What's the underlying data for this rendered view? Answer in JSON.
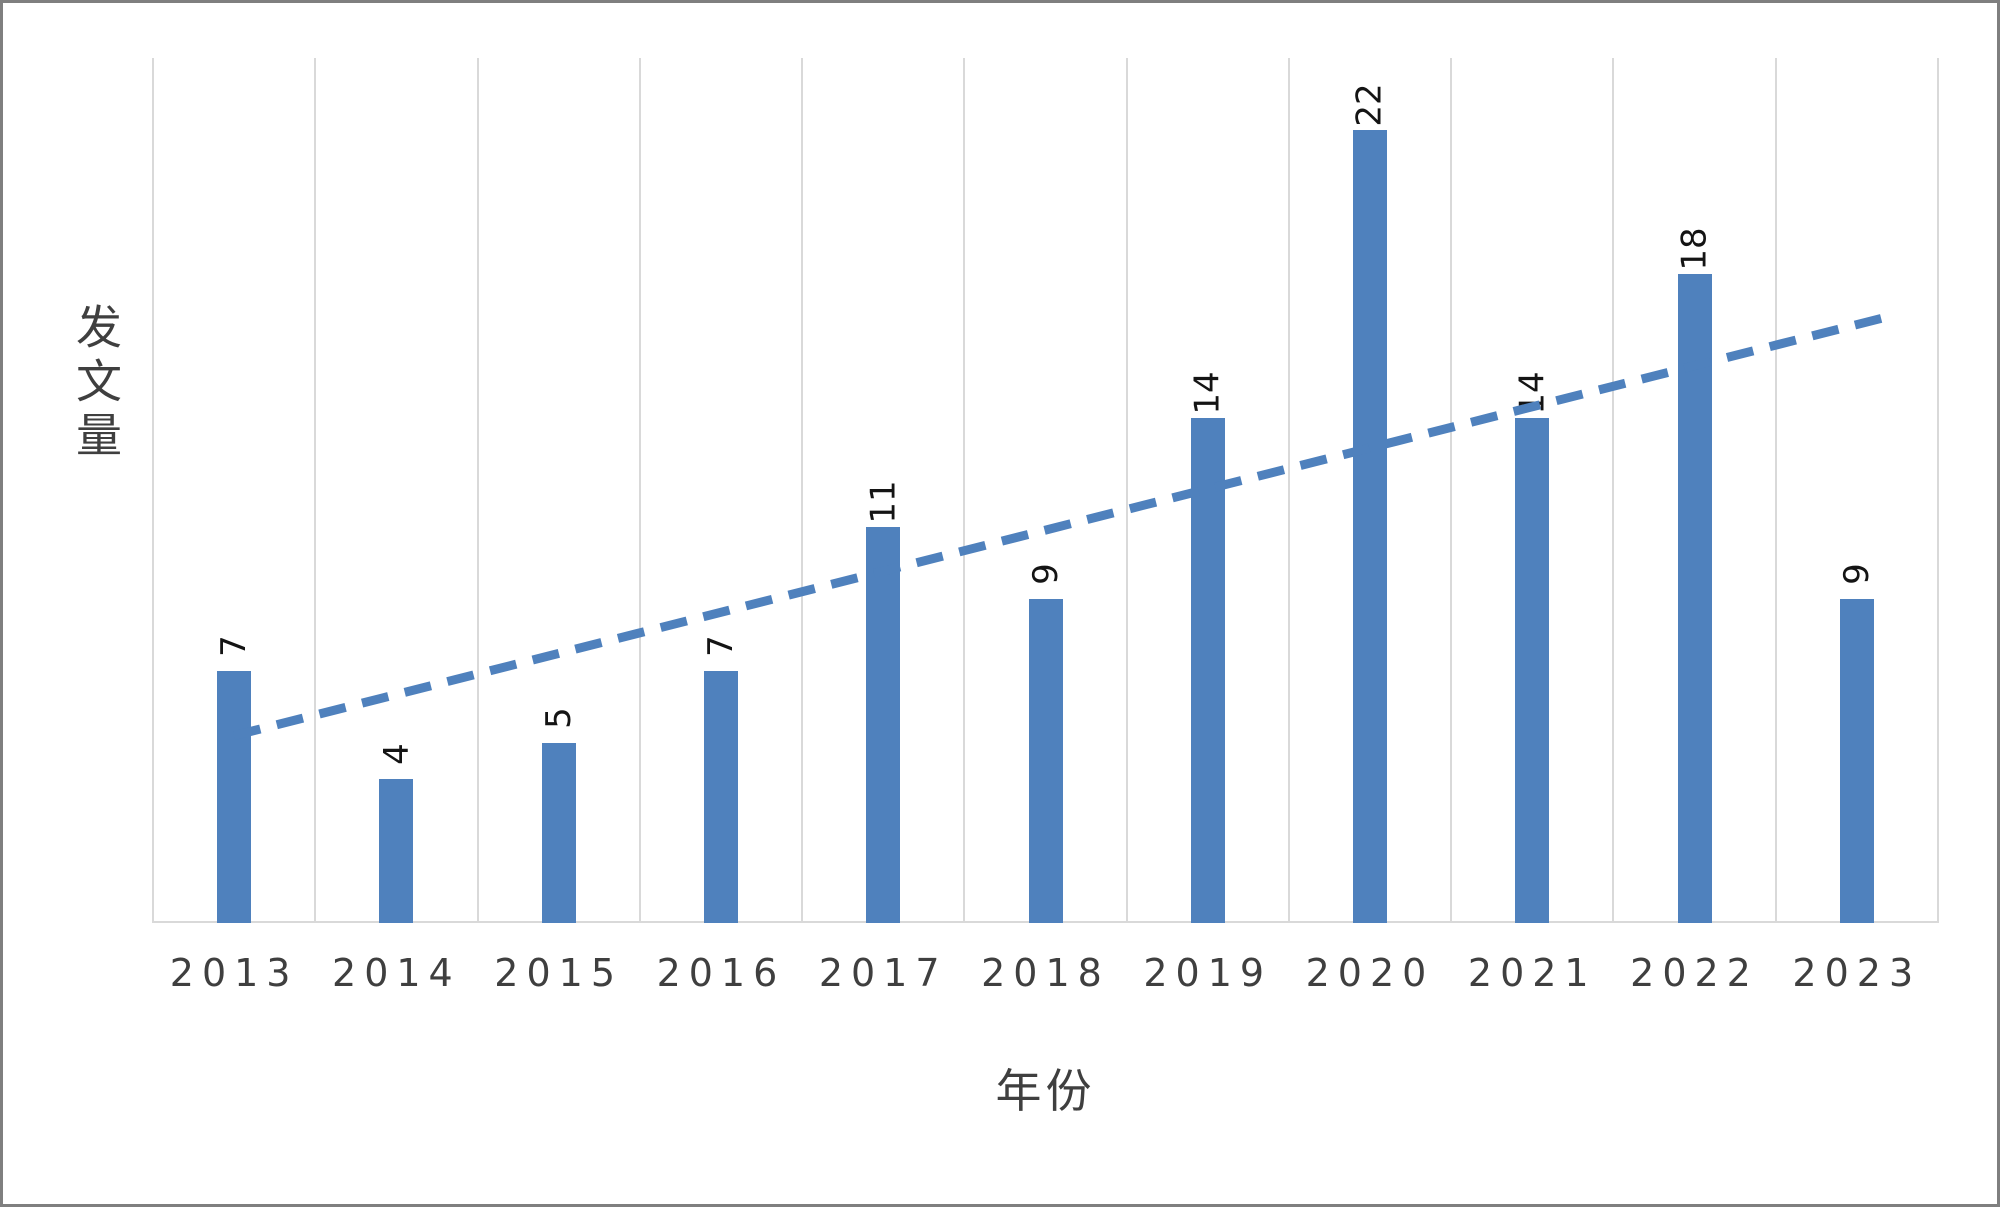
{
  "chart_data": {
    "type": "bar",
    "title": "",
    "categories": [
      "2013",
      "2014",
      "2015",
      "2016",
      "2017",
      "2018",
      "2019",
      "2020",
      "2021",
      "2022",
      "2023"
    ],
    "values": [
      7,
      4,
      5,
      7,
      11,
      9,
      14,
      22,
      14,
      18,
      9
    ],
    "xlabel": "年份",
    "ylabel": "发文量",
    "ylim": [
      0,
      24
    ],
    "grid": "vertical-only",
    "legend": "none",
    "y_axis_tick_labels": "hidden",
    "value_label_rotation_deg": -90,
    "colors": {
      "bar": "#4f81bd",
      "gridline": "#d9d9d9",
      "axis_line": "#d9d9d9",
      "trendline": "#4f81bd",
      "tick_text": "#3f3f3f",
      "value_text": "#141414",
      "frame_border": "#7f7f7f"
    },
    "trendline": {
      "type": "linear",
      "style": "dashed",
      "start_value": 5.2,
      "end_value": 16.6
    }
  }
}
